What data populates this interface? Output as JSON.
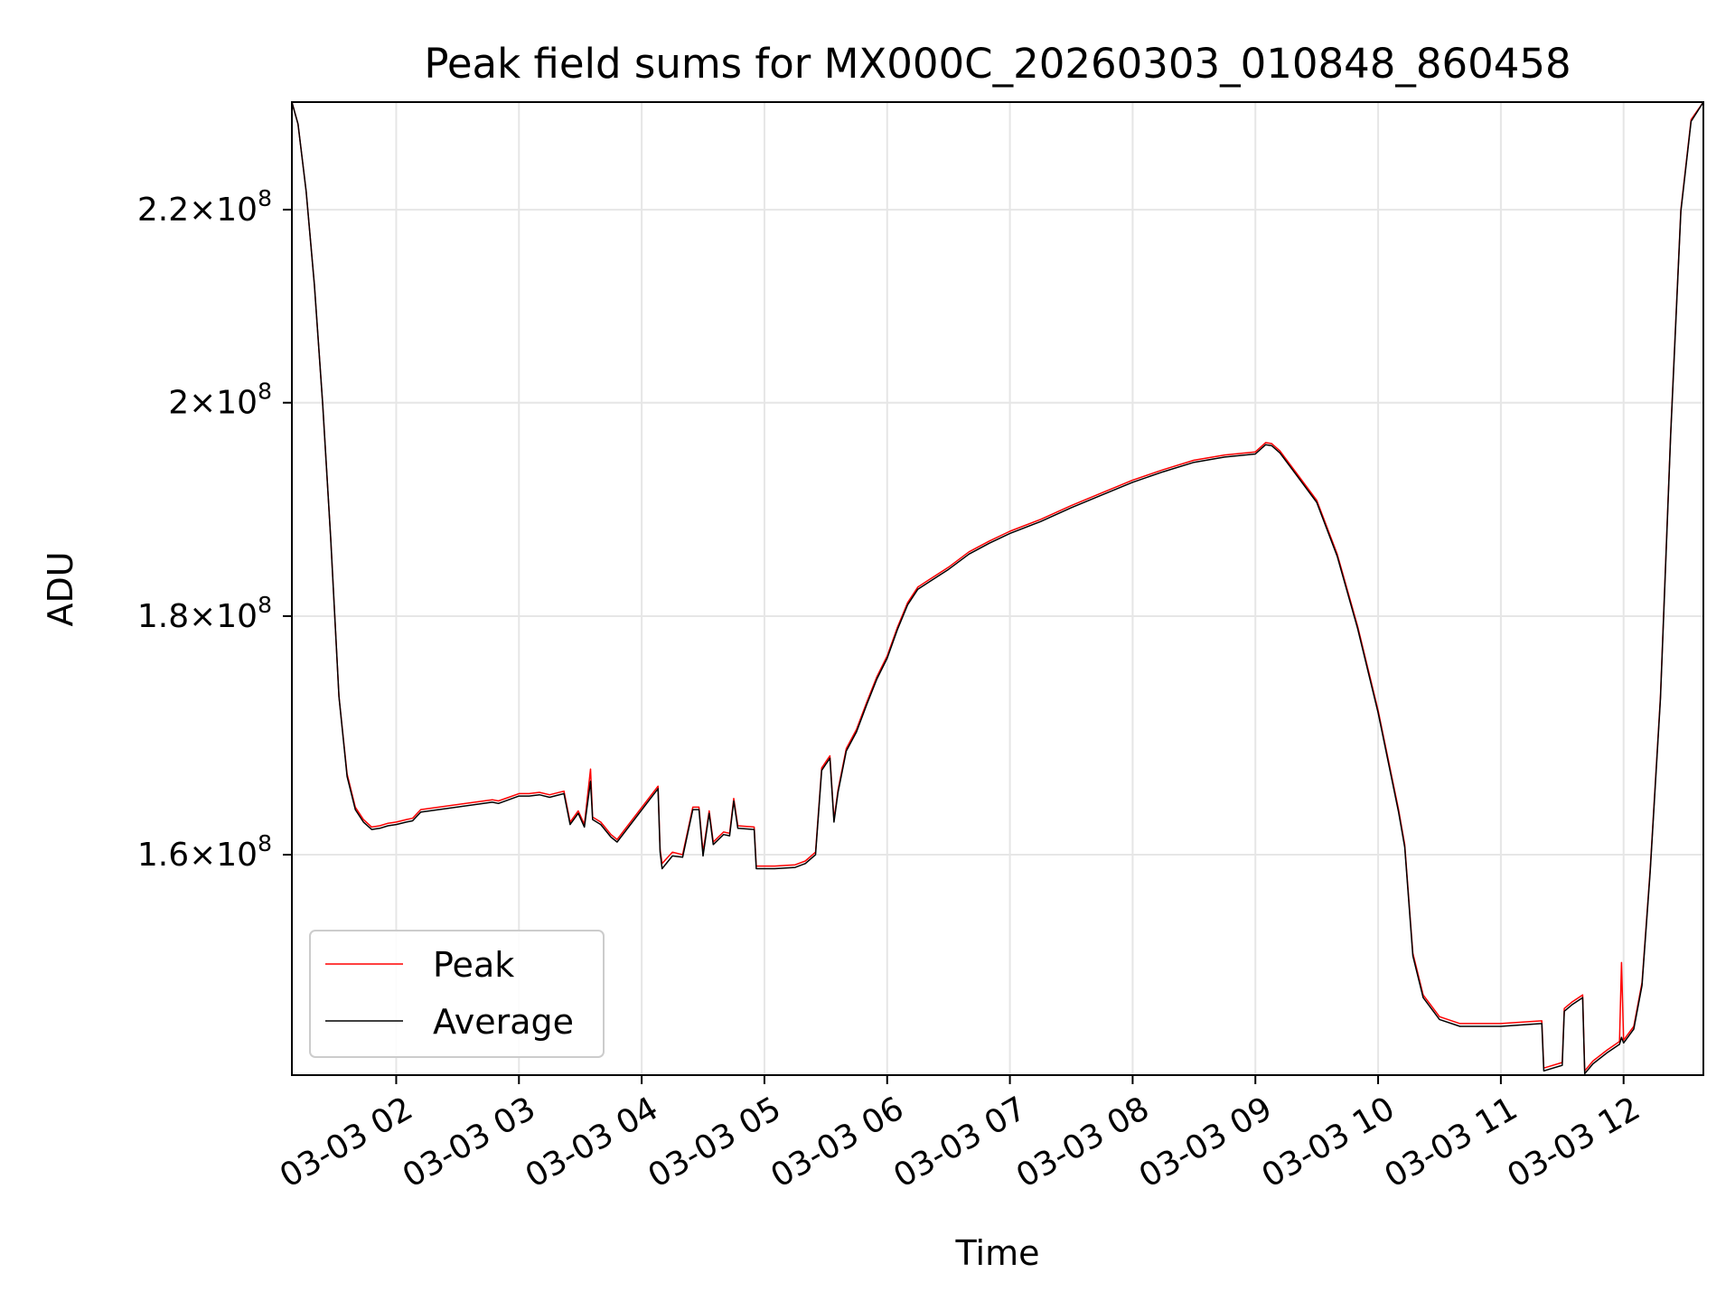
{
  "chart_data": {
    "type": "line",
    "title": "Peak field sums for MX000C_20260303_010848_860458",
    "xlabel": "Time",
    "ylabel": "ADU",
    "x_tick_labels": [
      "03-03 02",
      "03-03 03",
      "03-03 04",
      "03-03 05",
      "03-03 06",
      "03-03 07",
      "03-03 08",
      "03-03 09",
      "03-03 10",
      "03-03 11",
      "03-03 12"
    ],
    "y_scale": "log",
    "y_ticks": [
      {
        "mantissa": "2.2",
        "exponent": "8",
        "value": 220000000
      },
      {
        "mantissa": "2",
        "exponent": "8",
        "value": 200000000
      },
      {
        "mantissa": "1.8",
        "exponent": "8",
        "value": 180000000
      },
      {
        "mantissa": "1.6",
        "exponent": "8",
        "value": 160000000
      }
    ],
    "xlim": [
      "2026-03-03 01:09",
      "2026-03-03 12:39"
    ],
    "ylim": [
      143500000,
      232000000
    ],
    "grid": true,
    "legend_position": "lower-left",
    "series": [
      {
        "name": "Peak",
        "color": "#ff0000",
        "points": [
          [
            "2026-03-03 01:09",
            232000000
          ],
          [
            "2026-03-03 01:12",
            229500000
          ],
          [
            "2026-03-03 01:16",
            222000000
          ],
          [
            "2026-03-03 01:20",
            212000000
          ],
          [
            "2026-03-03 01:24",
            200000000
          ],
          [
            "2026-03-03 01:28",
            187000000
          ],
          [
            "2026-03-03 01:32",
            173000000
          ],
          [
            "2026-03-03 01:36",
            166500000
          ],
          [
            "2026-03-03 01:40",
            163800000
          ],
          [
            "2026-03-03 01:44",
            162800000
          ],
          [
            "2026-03-03 01:48",
            162200000
          ],
          [
            "2026-03-03 01:52",
            162300000
          ],
          [
            "2026-03-03 01:56",
            162500000
          ],
          [
            "2026-03-03 02:00",
            162600000
          ],
          [
            "2026-03-03 02:05",
            162800000
          ],
          [
            "2026-03-03 02:08",
            162900000
          ],
          [
            "2026-03-03 02:12",
            163600000
          ],
          [
            "2026-03-03 02:47",
            164400000
          ],
          [
            "2026-03-03 02:50",
            164300000
          ],
          [
            "2026-03-03 02:55",
            164600000
          ],
          [
            "2026-03-03 03:00",
            164900000
          ],
          [
            "2026-03-03 03:05",
            164900000
          ],
          [
            "2026-03-03 03:10",
            165000000
          ],
          [
            "2026-03-03 03:15",
            164800000
          ],
          [
            "2026-03-03 03:22",
            165100000
          ],
          [
            "2026-03-03 03:25",
            162600000
          ],
          [
            "2026-03-03 03:29",
            163500000
          ],
          [
            "2026-03-03 03:32",
            162400000
          ],
          [
            "2026-03-03 03:35",
            166900000
          ],
          [
            "2026-03-03 03:36",
            163000000
          ],
          [
            "2026-03-03 03:40",
            162600000
          ],
          [
            "2026-03-03 03:45",
            161600000
          ],
          [
            "2026-03-03 03:48",
            161200000
          ],
          [
            "2026-03-03 04:08",
            165500000
          ],
          [
            "2026-03-03 04:09",
            160400000
          ],
          [
            "2026-03-03 04:10",
            159300000
          ],
          [
            "2026-03-03 04:15",
            160200000
          ],
          [
            "2026-03-03 04:20",
            160000000
          ],
          [
            "2026-03-03 04:25",
            163800000
          ],
          [
            "2026-03-03 04:28",
            163800000
          ],
          [
            "2026-03-03 04:30",
            160200000
          ],
          [
            "2026-03-03 04:33",
            163500000
          ],
          [
            "2026-03-03 04:35",
            161000000
          ],
          [
            "2026-03-03 04:40",
            161800000
          ],
          [
            "2026-03-03 04:43",
            161700000
          ],
          [
            "2026-03-03 04:45",
            164500000
          ],
          [
            "2026-03-03 04:47",
            162300000
          ],
          [
            "2026-03-03 04:55",
            162200000
          ],
          [
            "2026-03-03 04:56",
            159100000
          ],
          [
            "2026-03-03 05:05",
            159100000
          ],
          [
            "2026-03-03 05:15",
            159200000
          ],
          [
            "2026-03-03 05:20",
            159500000
          ],
          [
            "2026-03-03 05:25",
            160200000
          ],
          [
            "2026-03-03 05:28",
            167000000
          ],
          [
            "2026-03-03 05:30",
            167500000
          ],
          [
            "2026-03-03 05:32",
            168000000
          ],
          [
            "2026-03-03 05:34",
            162800000
          ],
          [
            "2026-03-03 05:36",
            165200000
          ],
          [
            "2026-03-03 05:40",
            168600000
          ],
          [
            "2026-03-03 05:45",
            170200000
          ],
          [
            "2026-03-03 05:50",
            172500000
          ],
          [
            "2026-03-03 05:55",
            174700000
          ],
          [
            "2026-03-03 06:00",
            176500000
          ],
          [
            "2026-03-03 06:05",
            179000000
          ],
          [
            "2026-03-03 06:10",
            181200000
          ],
          [
            "2026-03-03 06:15",
            182600000
          ],
          [
            "2026-03-03 06:20",
            183200000
          ],
          [
            "2026-03-03 06:30",
            184400000
          ],
          [
            "2026-03-03 06:40",
            185800000
          ],
          [
            "2026-03-03 06:50",
            186800000
          ],
          [
            "2026-03-03 07:00",
            187700000
          ],
          [
            "2026-03-03 07:15",
            188800000
          ],
          [
            "2026-03-03 07:30",
            190100000
          ],
          [
            "2026-03-03 07:45",
            191300000
          ],
          [
            "2026-03-03 08:00",
            192500000
          ],
          [
            "2026-03-03 08:15",
            193500000
          ],
          [
            "2026-03-03 08:30",
            194400000
          ],
          [
            "2026-03-03 08:45",
            194900000
          ],
          [
            "2026-03-03 09:00",
            195200000
          ],
          [
            "2026-03-03 09:05",
            196100000
          ],
          [
            "2026-03-03 09:08",
            196000000
          ],
          [
            "2026-03-03 09:12",
            195300000
          ],
          [
            "2026-03-03 09:20",
            193200000
          ],
          [
            "2026-03-03 09:30",
            190600000
          ],
          [
            "2026-03-03 09:40",
            185600000
          ],
          [
            "2026-03-03 09:50",
            179100000
          ],
          [
            "2026-03-03 10:00",
            171800000
          ],
          [
            "2026-03-03 10:10",
            163600000
          ],
          [
            "2026-03-03 10:13",
            160800000
          ],
          [
            "2026-03-03 10:17",
            152400000
          ],
          [
            "2026-03-03 10:22",
            149300000
          ],
          [
            "2026-03-03 10:30",
            147700000
          ],
          [
            "2026-03-03 10:40",
            147200000
          ],
          [
            "2026-03-03 11:00",
            147200000
          ],
          [
            "2026-03-03 11:20",
            147400000
          ],
          [
            "2026-03-03 11:21",
            144000000
          ],
          [
            "2026-03-03 11:30",
            144400000
          ],
          [
            "2026-03-03 11:31",
            148300000
          ],
          [
            "2026-03-03 11:35",
            148800000
          ],
          [
            "2026-03-03 11:40",
            149300000
          ],
          [
            "2026-03-03 11:41",
            143800000
          ],
          [
            "2026-03-03 11:45",
            144500000
          ],
          [
            "2026-03-03 11:52",
            145300000
          ],
          [
            "2026-03-03 11:58",
            145900000
          ],
          [
            "2026-03-03 11:59",
            151700000
          ],
          [
            "2026-03-03 12:00",
            146000000
          ],
          [
            "2026-03-03 12:05",
            147000000
          ],
          [
            "2026-03-03 12:09",
            150200000
          ],
          [
            "2026-03-03 12:13",
            158800000
          ],
          [
            "2026-03-03 12:18",
            173000000
          ],
          [
            "2026-03-03 12:23",
            197000000
          ],
          [
            "2026-03-03 12:28",
            220000000
          ],
          [
            "2026-03-03 12:33",
            230000000
          ],
          [
            "2026-03-03 12:39",
            232000000
          ]
        ]
      },
      {
        "name": "Average",
        "color": "#000000",
        "points": [
          [
            "2026-03-03 01:09",
            232000000
          ],
          [
            "2026-03-03 01:12",
            229500000
          ],
          [
            "2026-03-03 01:16",
            222000000
          ],
          [
            "2026-03-03 01:20",
            212000000
          ],
          [
            "2026-03-03 01:24",
            200000000
          ],
          [
            "2026-03-03 01:28",
            187000000
          ],
          [
            "2026-03-03 01:32",
            173000000
          ],
          [
            "2026-03-03 01:36",
            166300000
          ],
          [
            "2026-03-03 01:40",
            163600000
          ],
          [
            "2026-03-03 01:44",
            162600000
          ],
          [
            "2026-03-03 01:48",
            162000000
          ],
          [
            "2026-03-03 01:52",
            162100000
          ],
          [
            "2026-03-03 01:56",
            162300000
          ],
          [
            "2026-03-03 02:00",
            162400000
          ],
          [
            "2026-03-03 02:05",
            162600000
          ],
          [
            "2026-03-03 02:08",
            162700000
          ],
          [
            "2026-03-03 02:12",
            163400000
          ],
          [
            "2026-03-03 02:47",
            164200000
          ],
          [
            "2026-03-03 02:50",
            164100000
          ],
          [
            "2026-03-03 02:55",
            164400000
          ],
          [
            "2026-03-03 03:00",
            164700000
          ],
          [
            "2026-03-03 03:05",
            164700000
          ],
          [
            "2026-03-03 03:10",
            164800000
          ],
          [
            "2026-03-03 03:15",
            164600000
          ],
          [
            "2026-03-03 03:22",
            164900000
          ],
          [
            "2026-03-03 03:25",
            162400000
          ],
          [
            "2026-03-03 03:29",
            163300000
          ],
          [
            "2026-03-03 03:32",
            162200000
          ],
          [
            "2026-03-03 03:35",
            165900000
          ],
          [
            "2026-03-03 03:36",
            162800000
          ],
          [
            "2026-03-03 03:40",
            162400000
          ],
          [
            "2026-03-03 03:45",
            161400000
          ],
          [
            "2026-03-03 03:48",
            161000000
          ],
          [
            "2026-03-03 04:08",
            165300000
          ],
          [
            "2026-03-03 04:09",
            160200000
          ],
          [
            "2026-03-03 04:10",
            158900000
          ],
          [
            "2026-03-03 04:15",
            159900000
          ],
          [
            "2026-03-03 04:20",
            159800000
          ],
          [
            "2026-03-03 04:25",
            163600000
          ],
          [
            "2026-03-03 04:28",
            163600000
          ],
          [
            "2026-03-03 04:30",
            159900000
          ],
          [
            "2026-03-03 04:33",
            163300000
          ],
          [
            "2026-03-03 04:35",
            160800000
          ],
          [
            "2026-03-03 04:40",
            161600000
          ],
          [
            "2026-03-03 04:43",
            161500000
          ],
          [
            "2026-03-03 04:45",
            164300000
          ],
          [
            "2026-03-03 04:47",
            162100000
          ],
          [
            "2026-03-03 04:55",
            162000000
          ],
          [
            "2026-03-03 04:56",
            158900000
          ],
          [
            "2026-03-03 05:05",
            158900000
          ],
          [
            "2026-03-03 05:15",
            159000000
          ],
          [
            "2026-03-03 05:20",
            159300000
          ],
          [
            "2026-03-03 05:25",
            160000000
          ],
          [
            "2026-03-03 05:28",
            166800000
          ],
          [
            "2026-03-03 05:30",
            167300000
          ],
          [
            "2026-03-03 05:32",
            167800000
          ],
          [
            "2026-03-03 05:34",
            162600000
          ],
          [
            "2026-03-03 05:36",
            165000000
          ],
          [
            "2026-03-03 05:40",
            168400000
          ],
          [
            "2026-03-03 05:45",
            170000000
          ],
          [
            "2026-03-03 05:50",
            172300000
          ],
          [
            "2026-03-03 05:55",
            174500000
          ],
          [
            "2026-03-03 06:00",
            176300000
          ],
          [
            "2026-03-03 06:05",
            178800000
          ],
          [
            "2026-03-03 06:10",
            181000000
          ],
          [
            "2026-03-03 06:15",
            182400000
          ],
          [
            "2026-03-03 06:20",
            183000000
          ],
          [
            "2026-03-03 06:30",
            184200000
          ],
          [
            "2026-03-03 06:40",
            185600000
          ],
          [
            "2026-03-03 06:50",
            186600000
          ],
          [
            "2026-03-03 07:00",
            187500000
          ],
          [
            "2026-03-03 07:15",
            188600000
          ],
          [
            "2026-03-03 07:30",
            189900000
          ],
          [
            "2026-03-03 07:45",
            191100000
          ],
          [
            "2026-03-03 08:00",
            192300000
          ],
          [
            "2026-03-03 08:15",
            193300000
          ],
          [
            "2026-03-03 08:30",
            194200000
          ],
          [
            "2026-03-03 08:45",
            194700000
          ],
          [
            "2026-03-03 09:00",
            195000000
          ],
          [
            "2026-03-03 09:05",
            195900000
          ],
          [
            "2026-03-03 09:08",
            195800000
          ],
          [
            "2026-03-03 09:12",
            195100000
          ],
          [
            "2026-03-03 09:20",
            193000000
          ],
          [
            "2026-03-03 09:30",
            190400000
          ],
          [
            "2026-03-03 09:40",
            185400000
          ],
          [
            "2026-03-03 09:50",
            178900000
          ],
          [
            "2026-03-03 10:00",
            171600000
          ],
          [
            "2026-03-03 10:10",
            163400000
          ],
          [
            "2026-03-03 10:13",
            160600000
          ],
          [
            "2026-03-03 10:17",
            152200000
          ],
          [
            "2026-03-03 10:22",
            149100000
          ],
          [
            "2026-03-03 10:30",
            147500000
          ],
          [
            "2026-03-03 10:40",
            147000000
          ],
          [
            "2026-03-03 11:00",
            147000000
          ],
          [
            "2026-03-03 11:20",
            147200000
          ],
          [
            "2026-03-03 11:21",
            143800000
          ],
          [
            "2026-03-03 11:30",
            144200000
          ],
          [
            "2026-03-03 11:31",
            148100000
          ],
          [
            "2026-03-03 11:35",
            148600000
          ],
          [
            "2026-03-03 11:40",
            149100000
          ],
          [
            "2026-03-03 11:41",
            143600000
          ],
          [
            "2026-03-03 11:45",
            144300000
          ],
          [
            "2026-03-03 11:52",
            145100000
          ],
          [
            "2026-03-03 11:58",
            145700000
          ],
          [
            "2026-03-03 11:59",
            146200000
          ],
          [
            "2026-03-03 12:00",
            145800000
          ],
          [
            "2026-03-03 12:05",
            146800000
          ],
          [
            "2026-03-03 12:09",
            150000000
          ],
          [
            "2026-03-03 12:13",
            158600000
          ],
          [
            "2026-03-03 12:18",
            172800000
          ],
          [
            "2026-03-03 12:23",
            196800000
          ],
          [
            "2026-03-03 12:28",
            219800000
          ],
          [
            "2026-03-03 12:33",
            229800000
          ],
          [
            "2026-03-03 12:39",
            232000000
          ]
        ]
      }
    ]
  }
}
